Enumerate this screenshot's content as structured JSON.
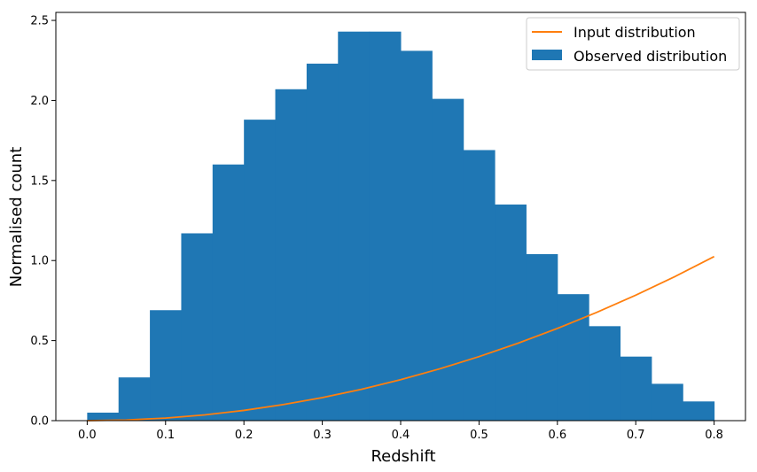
{
  "chart_data": {
    "type": "bar",
    "title": "",
    "xlabel": "Redshift",
    "ylabel": "Normalised count",
    "xlim": [
      -0.04,
      0.84
    ],
    "ylim": [
      0,
      2.55
    ],
    "xticks": [
      "0.0",
      "0.1",
      "0.2",
      "0.3",
      "0.4",
      "0.5",
      "0.6",
      "0.7",
      "0.8"
    ],
    "yticks": [
      "0.0",
      "0.5",
      "1.0",
      "1.5",
      "2.0",
      "2.5"
    ],
    "grid": false,
    "legend_position": "top-right",
    "histogram": {
      "name": "Observed distribution",
      "color": "#1f77b4",
      "bin_edges": [
        0.0,
        0.04,
        0.08,
        0.12,
        0.16,
        0.2,
        0.24,
        0.28,
        0.32,
        0.36,
        0.4,
        0.44,
        0.48,
        0.52,
        0.56,
        0.6,
        0.64,
        0.68,
        0.72,
        0.76,
        0.8
      ],
      "values": [
        0.05,
        0.27,
        0.69,
        1.17,
        1.6,
        1.88,
        2.07,
        2.23,
        2.43,
        2.43,
        2.31,
        2.01,
        1.69,
        1.35,
        1.04,
        0.79,
        0.59,
        0.4,
        0.23,
        0.12
      ]
    },
    "line": {
      "name": "Input distribution",
      "color": "#ff7f0e",
      "x": [
        0.0,
        0.05,
        0.1,
        0.15,
        0.2,
        0.25,
        0.3,
        0.35,
        0.4,
        0.45,
        0.5,
        0.55,
        0.6,
        0.65,
        0.7,
        0.75,
        0.8
      ],
      "y": [
        0.0,
        0.004,
        0.016,
        0.036,
        0.064,
        0.1,
        0.144,
        0.196,
        0.256,
        0.324,
        0.4,
        0.484,
        0.576,
        0.676,
        0.784,
        0.9,
        1.025
      ]
    }
  }
}
